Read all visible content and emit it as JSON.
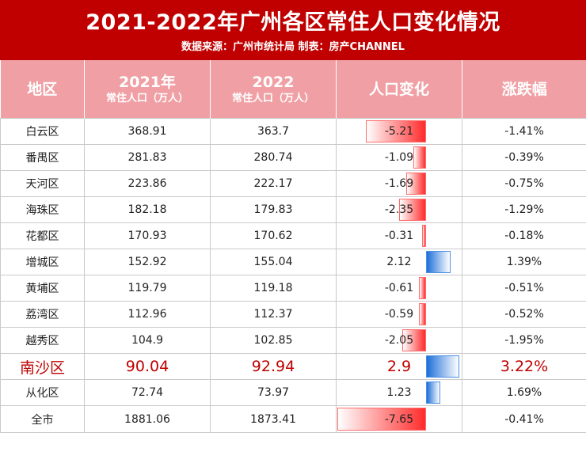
{
  "title": "2021-2022年广州各区常住人口变化情况",
  "subtitle": "数据来源：广州市统计局  制表：房产CHANNEL",
  "header": {
    "district": "地区",
    "year2021": "2021年",
    "year2021_unit": "常住人口（万人）",
    "year2022": "2022",
    "year2022_unit": "常住人口（万人）",
    "change": "人口变化",
    "rate": "涨跌幅"
  },
  "colors": {
    "title_bg": "#c00000",
    "header_bg": "#f0a0a5",
    "highlight": "#c00000",
    "neg_bar": "#ff2b2b",
    "pos_bar": "#1e6fd9"
  },
  "rows": [
    {
      "district": "白云区",
      "pop2021": "368.91",
      "pop2022": "363.7",
      "change": "-5.21",
      "rate": "-1.41%"
    },
    {
      "district": "番禺区",
      "pop2021": "281.83",
      "pop2022": "280.74",
      "change": "-1.09",
      "rate": "-0.39%"
    },
    {
      "district": "天河区",
      "pop2021": "223.86",
      "pop2022": "222.17",
      "change": "-1.69",
      "rate": "-0.75%"
    },
    {
      "district": "海珠区",
      "pop2021": "182.18",
      "pop2022": "179.83",
      "change": "-2.35",
      "rate": "-1.29%"
    },
    {
      "district": "花都区",
      "pop2021": "170.93",
      "pop2022": "170.62",
      "change": "-0.31",
      "rate": "-0.18%"
    },
    {
      "district": "增城区",
      "pop2021": "152.92",
      "pop2022": "155.04",
      "change": "2.12",
      "rate": "1.39%"
    },
    {
      "district": "黄埔区",
      "pop2021": "119.79",
      "pop2022": "119.18",
      "change": "-0.61",
      "rate": "-0.51%"
    },
    {
      "district": "荔湾区",
      "pop2021": "112.96",
      "pop2022": "112.37",
      "change": "-0.59",
      "rate": "-0.52%"
    },
    {
      "district": "越秀区",
      "pop2021": "104.9",
      "pop2022": "102.85",
      "change": "-2.05",
      "rate": "-1.95%"
    },
    {
      "district": "南沙区",
      "pop2021": "90.04",
      "pop2022": "92.94",
      "change": "2.9",
      "rate": "3.22%"
    },
    {
      "district": "从化区",
      "pop2021": "72.74",
      "pop2022": "73.97",
      "change": "1.23",
      "rate": "1.69%"
    },
    {
      "district": "全市",
      "pop2021": "1881.06",
      "pop2022": "1873.41",
      "change": "-7.65",
      "rate": "-0.41%"
    }
  ]
}
